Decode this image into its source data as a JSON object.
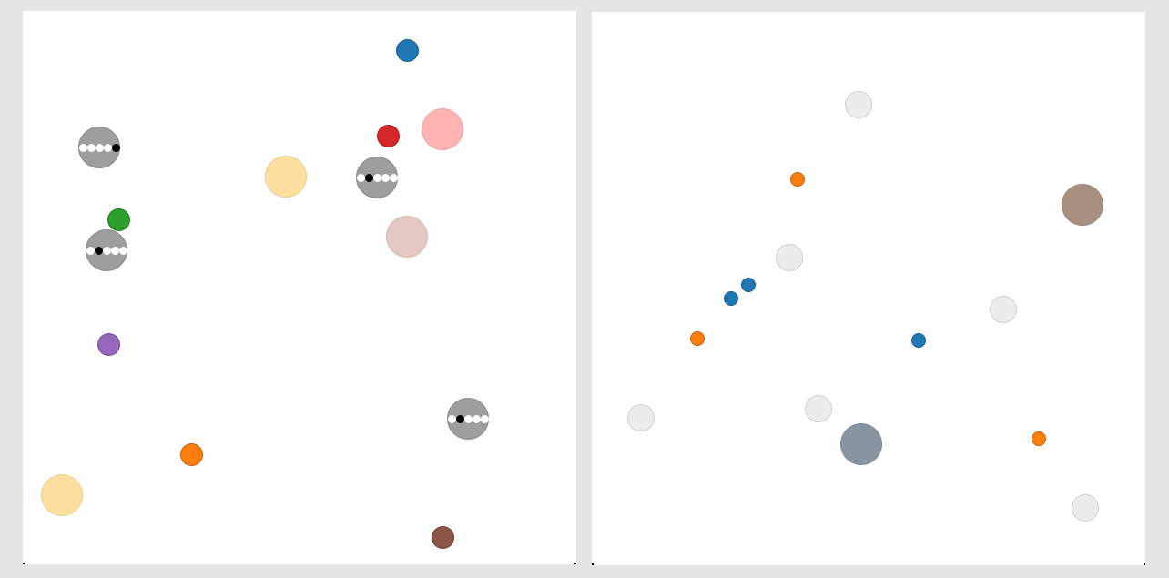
{
  "colors": {
    "background": "#e5e5e5",
    "panel": "#ffffff",
    "slot_circle": "#9e9e9e",
    "slot_on": "#000000",
    "slot_off": "#ffffff",
    "ghost": "#ececec"
  },
  "left_panel": {
    "slot_indicators": [
      {
        "name": "slot-indicator-1",
        "slots": 5,
        "active_slot": 5
      },
      {
        "name": "slot-indicator-2",
        "slots": 5,
        "active_slot": 2
      },
      {
        "name": "slot-indicator-3",
        "slots": 5,
        "active_slot": 2
      },
      {
        "name": "slot-indicator-4",
        "slots": 5,
        "active_slot": 2
      }
    ],
    "objects": [
      {
        "name": "blue-circle",
        "color": "#1f77b4"
      },
      {
        "name": "red-circle",
        "color": "#d62728"
      },
      {
        "name": "pink-circle",
        "color": "#ffb3b3"
      },
      {
        "name": "light-orange-circle",
        "color": "#fde0a0"
      },
      {
        "name": "rose-circle",
        "color": "#e4c8c4"
      },
      {
        "name": "green-circle",
        "color": "#2ca02c"
      },
      {
        "name": "purple-circle",
        "color": "#9467bd"
      },
      {
        "name": "orange-circle",
        "color": "#ff7f0e"
      },
      {
        "name": "light-orange-circle-2",
        "color": "#fde0a0"
      },
      {
        "name": "brown-circle",
        "color": "#8c564b"
      }
    ]
  },
  "right_panel": {
    "objects": [
      {
        "name": "ghost-circle-1",
        "color": "#ececec"
      },
      {
        "name": "orange-circle",
        "color": "#ff7f0e"
      },
      {
        "name": "tan-circle",
        "color": "#a89080"
      },
      {
        "name": "ghost-circle-2",
        "color": "#ececec"
      },
      {
        "name": "blue-circle-1",
        "color": "#1f77b4"
      },
      {
        "name": "blue-circle-2",
        "color": "#1f77b4"
      },
      {
        "name": "ghost-circle-3",
        "color": "#ececec"
      },
      {
        "name": "orange-circle-2",
        "color": "#ff7f0e"
      },
      {
        "name": "blue-circle-3",
        "color": "#1f77b4"
      },
      {
        "name": "ghost-circle-4",
        "color": "#ececec"
      },
      {
        "name": "ghost-circle-5",
        "color": "#ececec"
      },
      {
        "name": "slate-circle",
        "color": "#8794a1"
      },
      {
        "name": "orange-circle-3",
        "color": "#ff7f0e"
      },
      {
        "name": "ghost-circle-6",
        "color": "#ececec"
      }
    ]
  }
}
